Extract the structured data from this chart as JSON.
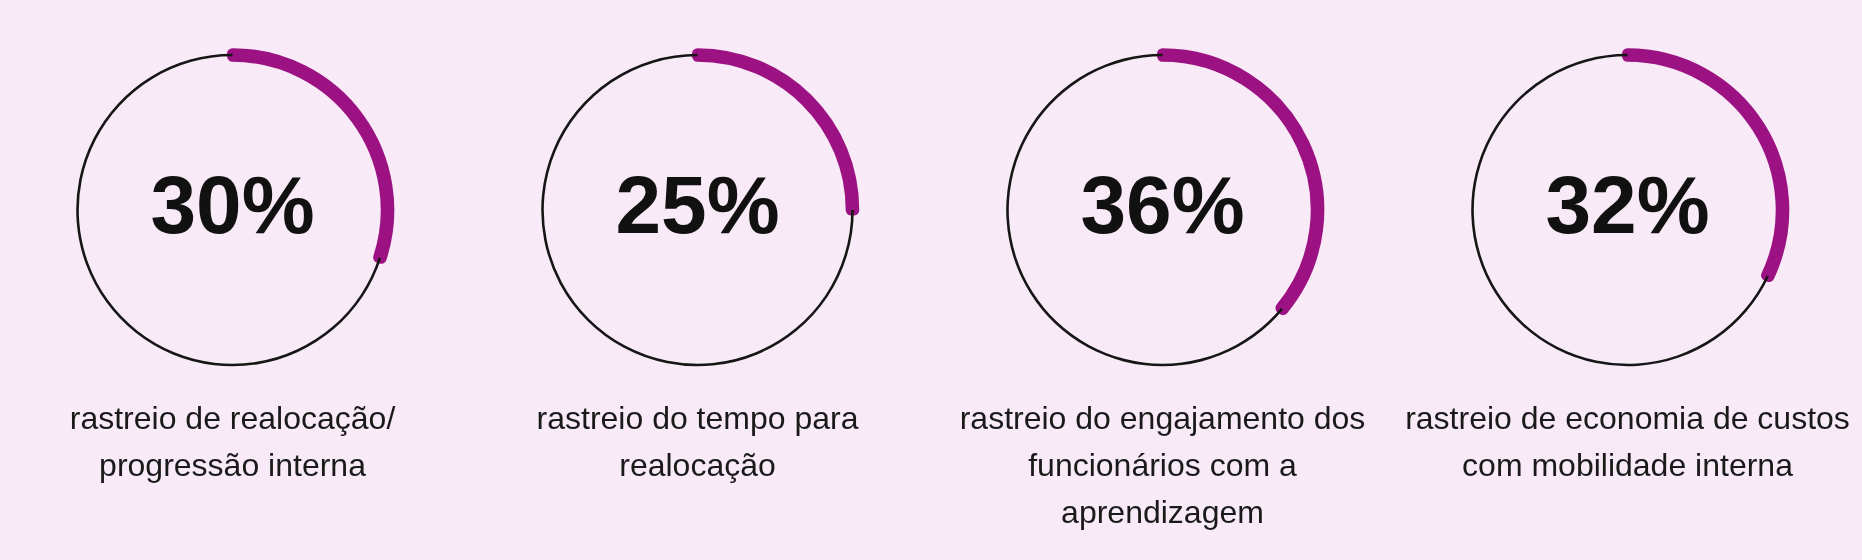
{
  "chart_data": [
    {
      "type": "donut",
      "title": "rastreio de realocação/ progressão interna",
      "categories": [
        null,
        null
      ],
      "values": [
        30,
        70
      ],
      "colors": [
        "#9c1283",
        "#161616"
      ],
      "value_labels": [
        "30%",
        null
      ]
    },
    {
      "type": "donut",
      "title": "rastreio do tempo para realocação",
      "categories": [
        null,
        null
      ],
      "values": [
        25,
        75
      ],
      "colors": [
        "#9c1283",
        "#161616"
      ],
      "value_labels": [
        "25%",
        null
      ]
    },
    {
      "type": "donut",
      "title": "rastreio do engajamento dos funcionários com a aprendizagem",
      "categories": [
        null,
        null
      ],
      "values": [
        36,
        64
      ],
      "colors": [
        "#9c1283",
        "#161616"
      ],
      "value_labels": [
        "36%",
        null
      ]
    },
    {
      "type": "donut",
      "title": "rastreio de economia de custos com mobilidade interna",
      "categories": [
        null,
        null
      ],
      "values": [
        32,
        68
      ],
      "colors": [
        "#9c1283",
        "#161616"
      ],
      "value_labels": [
        "32%",
        null
      ]
    }
  ]
}
